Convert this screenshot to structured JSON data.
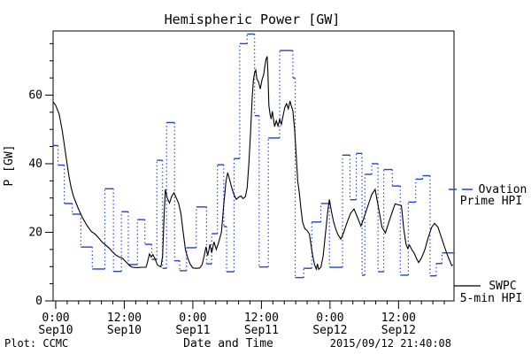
{
  "title": "Hemispheric Power [GW]",
  "footer": {
    "left": "Plot: CCMC",
    "right": "2015/09/12 21:40:08"
  },
  "legend": {
    "ovation": {
      "line1": "Ovation",
      "line2": "Prime HPI",
      "color": "#2244cc"
    },
    "swpc": {
      "line1": "SWPC",
      "line2": "5-min HPI",
      "color": "#000000"
    }
  },
  "chart_data": {
    "type": "line",
    "title": "Hemispheric Power [GW]",
    "xlabel": "Date and Time",
    "ylabel": "P [GW]",
    "x_unit": "hours since 2015-09-10 00:00 UT",
    "xlim": [
      -0.46,
      69.7
    ],
    "ylim": [
      0,
      78.7
    ],
    "grid": false,
    "legend_position": "right-outside",
    "x_major_ticks": [
      {
        "h": 0,
        "time": "0:00",
        "date": "Sep10"
      },
      {
        "h": 12,
        "time": "12:00",
        "date": "Sep10"
      },
      {
        "h": 24,
        "time": "0:00",
        "date": "Sep11"
      },
      {
        "h": 36,
        "time": "12:00",
        "date": "Sep11"
      },
      {
        "h": 48,
        "time": "0:00",
        "date": "Sep12"
      },
      {
        "h": 60,
        "time": "12:00",
        "date": "Sep12"
      }
    ],
    "x_minor_step_hours": 2,
    "y_major_ticks": [
      0,
      20,
      40,
      60
    ],
    "y_minor_step": 5,
    "series": [
      {
        "name": "Ovation Prime HPI",
        "color": "#2244cc",
        "style": "steps-dotted",
        "end_h": 69.7,
        "points_h_gw": [
          [
            -0.46,
            45.3
          ],
          [
            0.4,
            39.6
          ],
          [
            1.5,
            28.4
          ],
          [
            2.9,
            25.3
          ],
          [
            4.4,
            15.7
          ],
          [
            6.4,
            9.3
          ],
          [
            8.6,
            32.7
          ],
          [
            10.1,
            8.6
          ],
          [
            11.5,
            26.0
          ],
          [
            12.7,
            10.6
          ],
          [
            14.3,
            23.7
          ],
          [
            15.6,
            16.5
          ],
          [
            16.8,
            12.1
          ],
          [
            17.7,
            41.0
          ],
          [
            18.7,
            9.5
          ],
          [
            19.4,
            52.0
          ],
          [
            20.8,
            11.7
          ],
          [
            21.7,
            8.8
          ],
          [
            22.9,
            15.5
          ],
          [
            24.6,
            27.4
          ],
          [
            26.4,
            10.8
          ],
          [
            27.3,
            19.6
          ],
          [
            28.3,
            39.7
          ],
          [
            29.4,
            21.7
          ],
          [
            29.9,
            8.5
          ],
          [
            31.2,
            41.5
          ],
          [
            32.2,
            75.0
          ],
          [
            33.5,
            77.8
          ],
          [
            34.8,
            54.0
          ],
          [
            35.6,
            9.9
          ],
          [
            37.2,
            47.5
          ],
          [
            39.2,
            73.0
          ],
          [
            41.5,
            65.0
          ],
          [
            41.9,
            6.8
          ],
          [
            43.4,
            9.5
          ],
          [
            44.8,
            23.0
          ],
          [
            46.4,
            28.4
          ],
          [
            47.9,
            9.8
          ],
          [
            50.2,
            42.5
          ],
          [
            51.5,
            29.5
          ],
          [
            52.6,
            43.0
          ],
          [
            53.6,
            7.5
          ],
          [
            54.1,
            36.9
          ],
          [
            55.3,
            40.0
          ],
          [
            56.4,
            8.5
          ],
          [
            57.4,
            38.3
          ],
          [
            58.9,
            33.5
          ],
          [
            60.3,
            7.5
          ],
          [
            61.7,
            28.8
          ],
          [
            63.0,
            35.5
          ],
          [
            64.2,
            36.5
          ],
          [
            65.5,
            7.3
          ],
          [
            66.6,
            10.9
          ],
          [
            67.6,
            14.0
          ]
        ]
      },
      {
        "name": "SWPC 5-min HPI",
        "color": "#000000",
        "style": "solid",
        "points_h_gw": [
          [
            -0.46,
            58
          ],
          [
            0,
            57
          ],
          [
            0.6,
            54.5
          ],
          [
            1.1,
            50
          ],
          [
            1.5,
            45.5
          ],
          [
            1.9,
            41
          ],
          [
            2.3,
            36.5
          ],
          [
            2.7,
            33
          ],
          [
            3.1,
            30.5
          ],
          [
            3.9,
            27.1
          ],
          [
            4.7,
            24.2
          ],
          [
            5.5,
            21.9
          ],
          [
            6.2,
            20.3
          ],
          [
            7,
            19.3
          ],
          [
            7.6,
            18.2
          ],
          [
            8.2,
            17
          ],
          [
            8.8,
            16.2
          ],
          [
            9.4,
            15.3
          ],
          [
            10,
            14.2
          ],
          [
            10.6,
            13.3
          ],
          [
            11.2,
            12.7
          ],
          [
            11.7,
            12.4
          ],
          [
            12.4,
            11.2
          ],
          [
            13,
            10.2
          ],
          [
            13.4,
            9.8
          ],
          [
            14.2,
            9.7
          ],
          [
            15,
            9.8
          ],
          [
            15.8,
            9.8
          ],
          [
            16.1,
            11.5
          ],
          [
            16.4,
            13.7
          ],
          [
            16.7,
            12.8
          ],
          [
            17,
            13.5
          ],
          [
            17.4,
            12.2
          ],
          [
            17.8,
            10.5
          ],
          [
            18.4,
            9.9
          ],
          [
            18.7,
            13
          ],
          [
            19,
            26
          ],
          [
            19.2,
            32.5
          ],
          [
            19.5,
            30
          ],
          [
            19.9,
            28.5
          ],
          [
            20.3,
            30.5
          ],
          [
            20.7,
            31.5
          ],
          [
            21.1,
            30
          ],
          [
            21.5,
            28.5
          ],
          [
            21.9,
            25.5
          ],
          [
            22.3,
            20
          ],
          [
            22.7,
            15
          ],
          [
            23.1,
            12.5
          ],
          [
            23.5,
            10.8
          ],
          [
            24,
            9.6
          ],
          [
            24.6,
            9.5
          ],
          [
            25.2,
            9.6
          ],
          [
            25.6,
            10.5
          ],
          [
            25.9,
            12.5
          ],
          [
            26.3,
            15.8
          ],
          [
            26.6,
            13.2
          ],
          [
            27,
            16.5
          ],
          [
            27.3,
            14
          ],
          [
            27.7,
            17.2
          ],
          [
            28.1,
            15
          ],
          [
            28.5,
            17
          ],
          [
            29,
            20
          ],
          [
            29.4,
            28
          ],
          [
            29.8,
            35
          ],
          [
            30.1,
            37.4
          ],
          [
            30.4,
            35.5
          ],
          [
            30.8,
            33
          ],
          [
            31.2,
            31
          ],
          [
            31.6,
            29.6
          ],
          [
            32,
            30.2
          ],
          [
            32.4,
            30.6
          ],
          [
            32.8,
            29.8
          ],
          [
            33.2,
            30.4
          ],
          [
            33.5,
            33
          ],
          [
            33.8,
            40
          ],
          [
            34.1,
            49
          ],
          [
            34.4,
            60
          ],
          [
            34.6,
            64.5
          ],
          [
            34.8,
            66.5
          ],
          [
            35,
            67.3
          ],
          [
            35.2,
            64.8
          ],
          [
            35.5,
            63.8
          ],
          [
            35.8,
            61.8
          ],
          [
            36.1,
            64.5
          ],
          [
            36.4,
            66
          ],
          [
            36.6,
            68.5
          ],
          [
            36.8,
            70.5
          ],
          [
            37,
            71.3
          ],
          [
            37.15,
            66
          ],
          [
            37.3,
            57
          ],
          [
            37.5,
            54.5
          ],
          [
            37.7,
            53
          ],
          [
            37.9,
            55.3
          ],
          [
            38.1,
            53
          ],
          [
            38.3,
            50.8
          ],
          [
            38.6,
            52.5
          ],
          [
            38.9,
            51
          ],
          [
            39.2,
            53
          ],
          [
            39.5,
            51.5
          ],
          [
            39.8,
            54
          ],
          [
            40.1,
            56.5
          ],
          [
            40.4,
            57.5
          ],
          [
            40.7,
            56
          ],
          [
            41,
            58.3
          ],
          [
            41.2,
            57
          ],
          [
            41.5,
            55.5
          ],
          [
            41.8,
            50
          ],
          [
            42.1,
            42
          ],
          [
            42.35,
            35
          ],
          [
            42.6,
            32
          ],
          [
            42.9,
            27
          ],
          [
            43.2,
            23
          ],
          [
            43.6,
            21
          ],
          [
            44,
            20.5
          ],
          [
            44.4,
            19.5
          ],
          [
            44.7,
            16
          ],
          [
            45,
            13
          ],
          [
            45.3,
            10.5
          ],
          [
            45.6,
            9.3
          ],
          [
            45.8,
            10.8
          ],
          [
            46,
            9.2
          ],
          [
            46.4,
            9.8
          ],
          [
            46.8,
            13
          ],
          [
            47.2,
            19.5
          ],
          [
            47.6,
            26
          ],
          [
            47.9,
            29.6
          ],
          [
            48.2,
            26.5
          ],
          [
            48.6,
            23.2
          ],
          [
            49,
            21
          ],
          [
            49.4,
            19.3
          ],
          [
            49.9,
            18
          ],
          [
            50.4,
            20
          ],
          [
            51,
            23
          ],
          [
            51.6,
            25.5
          ],
          [
            52.2,
            26.8
          ],
          [
            52.9,
            24
          ],
          [
            53.4,
            21.8
          ],
          [
            54,
            24.5
          ],
          [
            54.7,
            28
          ],
          [
            55.3,
            31
          ],
          [
            55.9,
            32.5
          ],
          [
            56.5,
            27
          ],
          [
            57.1,
            21.5
          ],
          [
            57.7,
            19.8
          ],
          [
            58.3,
            23
          ],
          [
            58.9,
            26
          ],
          [
            59.4,
            28.3
          ],
          [
            60,
            28
          ],
          [
            60.5,
            27.8
          ],
          [
            60.9,
            21
          ],
          [
            61.3,
            16.5
          ],
          [
            61.6,
            15.3
          ],
          [
            61.9,
            16.3
          ],
          [
            62.3,
            15
          ],
          [
            62.7,
            14
          ],
          [
            63.1,
            12.5
          ],
          [
            63.5,
            11.2
          ],
          [
            64,
            12.5
          ],
          [
            64.6,
            15
          ],
          [
            65.2,
            18.5
          ],
          [
            65.8,
            21.5
          ],
          [
            66.3,
            22.6
          ],
          [
            66.9,
            21.5
          ],
          [
            67.4,
            19
          ],
          [
            68,
            16
          ],
          [
            68.5,
            13.5
          ],
          [
            69,
            11.5
          ],
          [
            69.3,
            10.3
          ],
          [
            69.5,
            10.5
          ]
        ]
      }
    ]
  }
}
